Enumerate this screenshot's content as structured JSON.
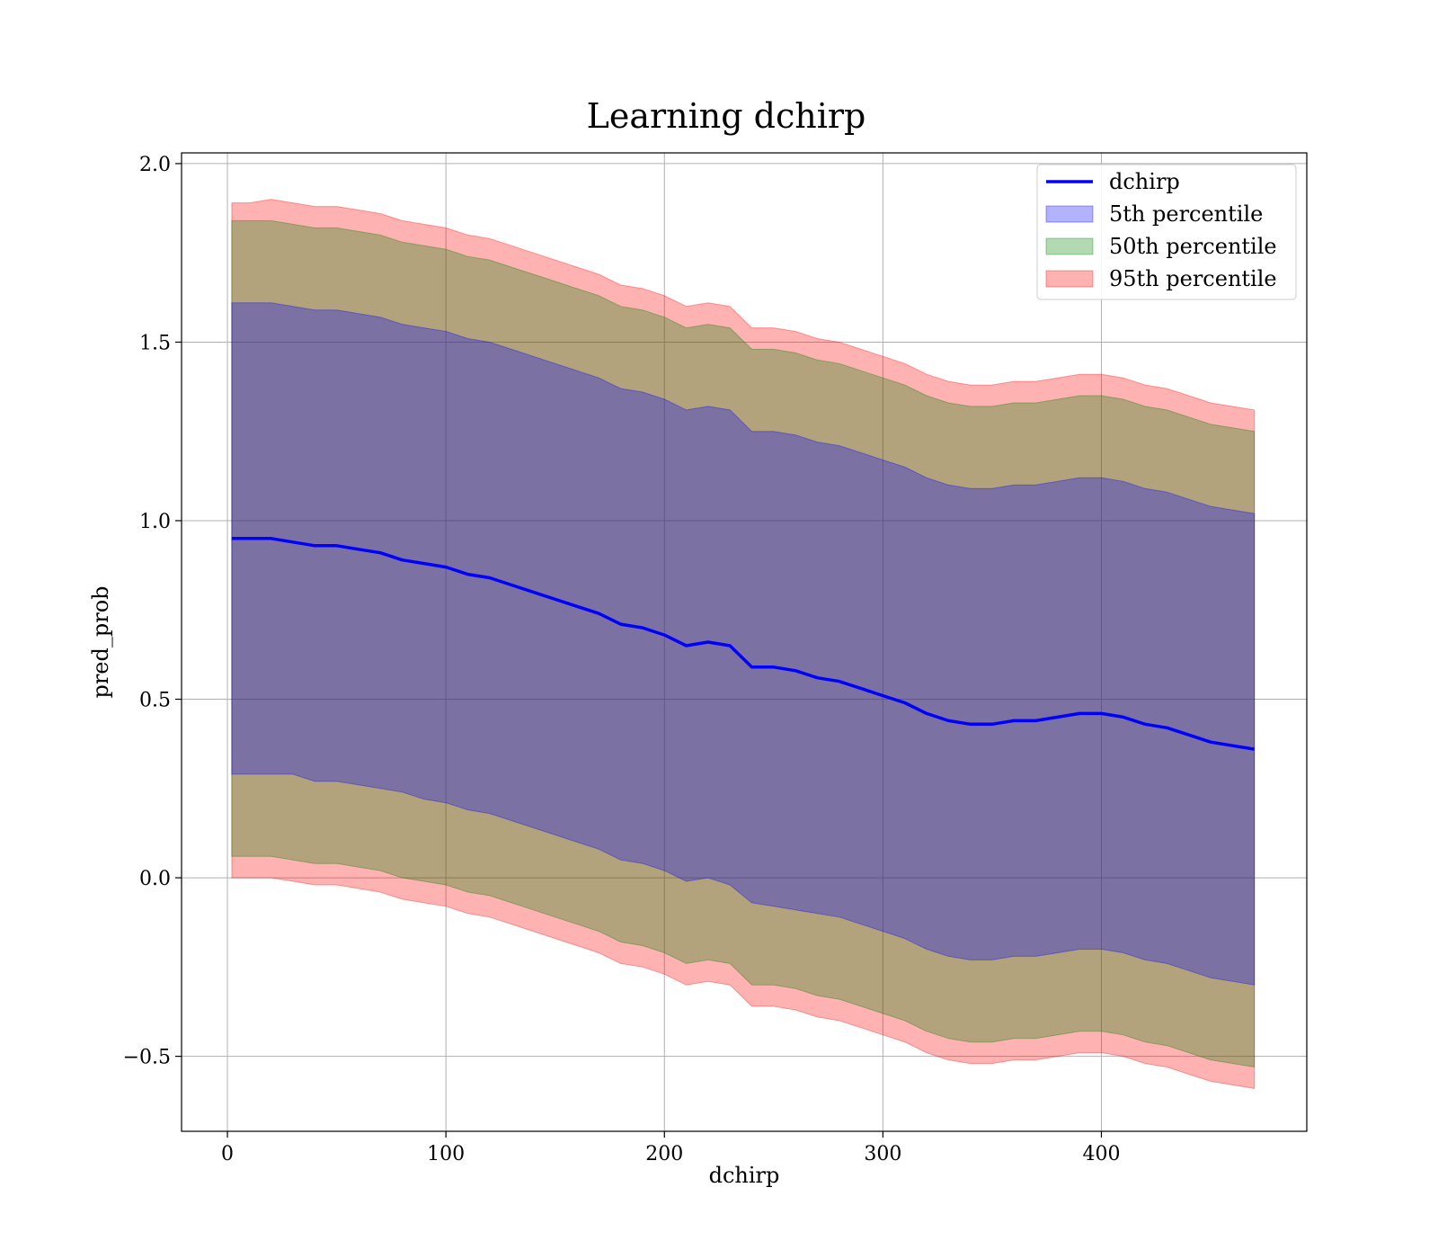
{
  "chart_data": {
    "type": "area",
    "title": "Learning dchirp",
    "xlabel": "dchirp",
    "ylabel": "pred_prob",
    "xlim": [
      -21,
      494
    ],
    "ylim": [
      -0.71,
      2.03
    ],
    "xticks": [
      0,
      100,
      200,
      300,
      400
    ],
    "xtick_labels": [
      "0",
      "100",
      "200",
      "300",
      "400"
    ],
    "yticks": [
      -0.5,
      0.0,
      0.5,
      1.0,
      1.5,
      2.0
    ],
    "ytick_labels": [
      "−0.5",
      "0.0",
      "0.5",
      "1.0",
      "1.5",
      "2.0"
    ],
    "grid": true,
    "legend_position": "top-right",
    "x": [
      2,
      10,
      20,
      30,
      40,
      50,
      60,
      70,
      80,
      90,
      100,
      110,
      120,
      130,
      140,
      150,
      160,
      170,
      180,
      190,
      200,
      210,
      220,
      230,
      240,
      250,
      260,
      270,
      280,
      290,
      300,
      310,
      320,
      330,
      340,
      350,
      360,
      370,
      380,
      390,
      400,
      410,
      420,
      430,
      440,
      450,
      470
    ],
    "series": [
      {
        "name": "dchirp",
        "kind": "line",
        "color": "#0000ff",
        "values": [
          0.95,
          0.95,
          0.95,
          0.94,
          0.93,
          0.93,
          0.92,
          0.91,
          0.89,
          0.88,
          0.87,
          0.85,
          0.84,
          0.82,
          0.8,
          0.78,
          0.76,
          0.74,
          0.71,
          0.7,
          0.68,
          0.65,
          0.66,
          0.65,
          0.59,
          0.59,
          0.58,
          0.56,
          0.55,
          0.53,
          0.51,
          0.49,
          0.46,
          0.44,
          0.43,
          0.43,
          0.44,
          0.44,
          0.45,
          0.46,
          0.46,
          0.45,
          0.43,
          0.42,
          0.4,
          0.38,
          0.36
        ]
      },
      {
        "name": "5th percentile",
        "kind": "band",
        "color": "#0000ff",
        "lower": [
          0.29,
          0.29,
          0.29,
          0.29,
          0.27,
          0.27,
          0.26,
          0.25,
          0.24,
          0.22,
          0.21,
          0.19,
          0.18,
          0.16,
          0.14,
          0.12,
          0.1,
          0.08,
          0.05,
          0.04,
          0.02,
          -0.01,
          0.0,
          -0.02,
          -0.07,
          -0.08,
          -0.09,
          -0.1,
          -0.11,
          -0.13,
          -0.15,
          -0.17,
          -0.2,
          -0.22,
          -0.23,
          -0.23,
          -0.22,
          -0.22,
          -0.21,
          -0.2,
          -0.2,
          -0.21,
          -0.23,
          -0.24,
          -0.26,
          -0.28,
          -0.3
        ],
        "upper": [
          1.61,
          1.61,
          1.61,
          1.6,
          1.59,
          1.59,
          1.58,
          1.57,
          1.55,
          1.54,
          1.53,
          1.51,
          1.5,
          1.48,
          1.46,
          1.44,
          1.42,
          1.4,
          1.37,
          1.36,
          1.34,
          1.31,
          1.32,
          1.31,
          1.25,
          1.25,
          1.24,
          1.22,
          1.21,
          1.19,
          1.17,
          1.15,
          1.12,
          1.1,
          1.09,
          1.09,
          1.1,
          1.1,
          1.11,
          1.12,
          1.12,
          1.11,
          1.09,
          1.08,
          1.06,
          1.04,
          1.02
        ]
      },
      {
        "name": "50th percentile",
        "kind": "band",
        "color": "#008000",
        "lower": [
          0.06,
          0.06,
          0.06,
          0.05,
          0.04,
          0.04,
          0.03,
          0.02,
          0.0,
          -0.01,
          -0.02,
          -0.04,
          -0.05,
          -0.07,
          -0.09,
          -0.11,
          -0.13,
          -0.15,
          -0.18,
          -0.19,
          -0.21,
          -0.24,
          -0.23,
          -0.24,
          -0.3,
          -0.3,
          -0.31,
          -0.33,
          -0.34,
          -0.36,
          -0.38,
          -0.4,
          -0.43,
          -0.45,
          -0.46,
          -0.46,
          -0.45,
          -0.45,
          -0.44,
          -0.43,
          -0.43,
          -0.44,
          -0.46,
          -0.47,
          -0.49,
          -0.51,
          -0.53
        ],
        "upper": [
          1.84,
          1.84,
          1.84,
          1.83,
          1.82,
          1.82,
          1.81,
          1.8,
          1.78,
          1.77,
          1.76,
          1.74,
          1.73,
          1.71,
          1.69,
          1.67,
          1.65,
          1.63,
          1.6,
          1.59,
          1.57,
          1.54,
          1.55,
          1.54,
          1.48,
          1.48,
          1.47,
          1.45,
          1.44,
          1.42,
          1.4,
          1.38,
          1.35,
          1.33,
          1.32,
          1.32,
          1.33,
          1.33,
          1.34,
          1.35,
          1.35,
          1.34,
          1.32,
          1.31,
          1.29,
          1.27,
          1.25
        ]
      },
      {
        "name": "95th percentile",
        "kind": "band",
        "color": "#ff0000",
        "lower": [
          0.0,
          0.0,
          0.0,
          -0.01,
          -0.02,
          -0.02,
          -0.03,
          -0.04,
          -0.06,
          -0.07,
          -0.08,
          -0.1,
          -0.11,
          -0.13,
          -0.15,
          -0.17,
          -0.19,
          -0.21,
          -0.24,
          -0.25,
          -0.27,
          -0.3,
          -0.29,
          -0.3,
          -0.36,
          -0.36,
          -0.37,
          -0.39,
          -0.4,
          -0.42,
          -0.44,
          -0.46,
          -0.49,
          -0.51,
          -0.52,
          -0.52,
          -0.51,
          -0.51,
          -0.5,
          -0.49,
          -0.49,
          -0.5,
          -0.52,
          -0.53,
          -0.55,
          -0.57,
          -0.59
        ],
        "upper": [
          1.89,
          1.89,
          1.9,
          1.89,
          1.88,
          1.88,
          1.87,
          1.86,
          1.84,
          1.83,
          1.82,
          1.8,
          1.79,
          1.77,
          1.75,
          1.73,
          1.71,
          1.69,
          1.66,
          1.65,
          1.63,
          1.6,
          1.61,
          1.6,
          1.54,
          1.54,
          1.53,
          1.51,
          1.5,
          1.48,
          1.46,
          1.44,
          1.41,
          1.39,
          1.38,
          1.38,
          1.39,
          1.39,
          1.4,
          1.41,
          1.41,
          1.4,
          1.38,
          1.37,
          1.35,
          1.33,
          1.31
        ]
      }
    ]
  }
}
